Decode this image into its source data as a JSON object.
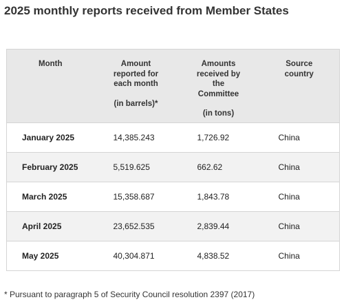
{
  "title": "2025 monthly reports received from Member States",
  "table": {
    "headers": {
      "month": "Month",
      "amount_lines": [
        "Amount",
        "reported for",
        "each month"
      ],
      "amount_unit": "(in barrels)*",
      "received_lines": [
        "Amounts",
        "received by",
        "the",
        "Committee"
      ],
      "received_unit": "(in tons)",
      "country_lines": [
        "Source",
        "country"
      ]
    },
    "rows": [
      {
        "month": "January 2025",
        "amount": "14,385.243",
        "received": "1,726.92",
        "country": "China"
      },
      {
        "month": "February 2025",
        "amount": "5,519.625",
        "received": "662.62",
        "country": "China"
      },
      {
        "month": "March 2025",
        "amount": "15,358.687",
        "received": "1,843.78",
        "country": "China"
      },
      {
        "month": "April 2025",
        "amount": "23,652.535",
        "received": "2,839.44",
        "country": "China"
      },
      {
        "month": "May 2025",
        "amount": "40,304.871",
        "received": "4,838.52",
        "country": "China"
      }
    ]
  },
  "footnote": "* Pursuant to paragraph 5 of Security Council resolution 2397 (2017)"
}
